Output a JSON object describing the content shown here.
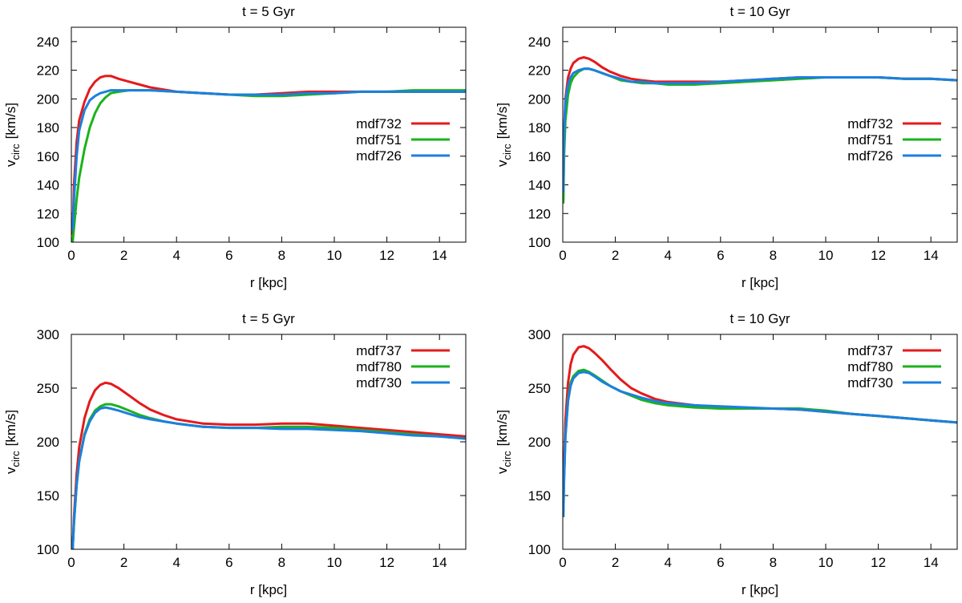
{
  "chart_data": [
    {
      "type": "line",
      "title": "t = 5 Gyr",
      "xlabel": "r [kpc]",
      "ylabel_main": "v",
      "ylabel_sub": "circ",
      "ylabel_unit": "[km/s]",
      "xlim": [
        0,
        15
      ],
      "ylim": [
        100,
        250
      ],
      "xticks": [
        0,
        2,
        4,
        6,
        8,
        10,
        12,
        14
      ],
      "yticks": [
        100,
        120,
        140,
        160,
        180,
        200,
        220,
        240
      ],
      "grid": false,
      "legend_position": "right-middle",
      "series": [
        {
          "name": "mdf732",
          "color": "#e41a1c",
          "x": [
            0.05,
            0.1,
            0.2,
            0.3,
            0.5,
            0.7,
            0.9,
            1.1,
            1.3,
            1.5,
            1.8,
            2.2,
            2.6,
            3,
            4,
            5,
            6,
            7,
            8,
            9,
            10,
            11,
            12,
            13,
            14,
            15
          ],
          "y": [
            105,
            140,
            170,
            185,
            198,
            207,
            212,
            215,
            216,
            216,
            214,
            212,
            210,
            208,
            205,
            204,
            203,
            203,
            204,
            205,
            205,
            205,
            205,
            205,
            205,
            205
          ]
        },
        {
          "name": "mdf751",
          "color": "#1ab31a",
          "x": [
            0.05,
            0.1,
            0.2,
            0.3,
            0.5,
            0.7,
            0.9,
            1.1,
            1.3,
            1.5,
            1.8,
            2.2,
            2.6,
            3,
            4,
            5,
            6,
            7,
            8,
            9,
            10,
            11,
            12,
            13,
            14,
            15
          ],
          "y": [
            100,
            110,
            130,
            145,
            165,
            180,
            190,
            197,
            201,
            204,
            205,
            206,
            206,
            206,
            205,
            204,
            203,
            202,
            202,
            203,
            204,
            205,
            205,
            206,
            206,
            206
          ]
        },
        {
          "name": "mdf726",
          "color": "#1c7fe0",
          "x": [
            0.05,
            0.1,
            0.2,
            0.3,
            0.5,
            0.7,
            0.9,
            1.1,
            1.3,
            1.5,
            1.8,
            2.2,
            2.6,
            3,
            4,
            5,
            6,
            7,
            8,
            9,
            10,
            11,
            12,
            13,
            14,
            15
          ],
          "y": [
            108,
            130,
            160,
            178,
            192,
            199,
            202,
            204,
            205,
            206,
            206,
            206,
            206,
            206,
            205,
            204,
            203,
            203,
            203,
            204,
            204,
            205,
            205,
            205,
            205,
            205
          ]
        }
      ]
    },
    {
      "type": "line",
      "title": "t = 10 Gyr",
      "xlabel": "r [kpc]",
      "ylabel_main": "v",
      "ylabel_sub": "circ",
      "ylabel_unit": "[km/s]",
      "xlim": [
        0,
        15
      ],
      "ylim": [
        100,
        250
      ],
      "xticks": [
        0,
        2,
        4,
        6,
        8,
        10,
        12,
        14
      ],
      "yticks": [
        100,
        120,
        140,
        160,
        180,
        200,
        220,
        240
      ],
      "grid": false,
      "legend_position": "right-middle",
      "series": [
        {
          "name": "mdf732",
          "color": "#e41a1c",
          "x": [
            0.02,
            0.05,
            0.1,
            0.2,
            0.3,
            0.4,
            0.6,
            0.8,
            1,
            1.2,
            1.5,
            1.8,
            2.2,
            2.6,
            3,
            3.5,
            4,
            5,
            6,
            7,
            8,
            9,
            10,
            11,
            12,
            13,
            14,
            15
          ],
          "y": [
            130,
            175,
            200,
            215,
            221,
            225,
            228,
            229,
            228,
            226,
            222,
            219,
            216,
            214,
            213,
            212,
            212,
            212,
            212,
            213,
            214,
            215,
            215,
            215,
            215,
            214,
            214,
            213
          ]
        },
        {
          "name": "mdf751",
          "color": "#1ab31a",
          "x": [
            0.02,
            0.05,
            0.1,
            0.2,
            0.3,
            0.4,
            0.6,
            0.8,
            1,
            1.2,
            1.5,
            1.8,
            2.2,
            2.6,
            3,
            3.5,
            4,
            5,
            6,
            7,
            8,
            9,
            10,
            11,
            12,
            13,
            14,
            15
          ],
          "y": [
            127,
            160,
            185,
            203,
            211,
            215,
            219,
            221,
            221,
            220,
            218,
            216,
            213,
            212,
            211,
            211,
            210,
            210,
            211,
            212,
            213,
            214,
            215,
            215,
            215,
            214,
            214,
            213
          ]
        },
        {
          "name": "mdf726",
          "color": "#1c7fe0",
          "x": [
            0.02,
            0.05,
            0.1,
            0.2,
            0.3,
            0.4,
            0.6,
            0.8,
            1,
            1.2,
            1.5,
            1.8,
            2.2,
            2.6,
            3,
            3.5,
            4,
            5,
            6,
            7,
            8,
            9,
            10,
            11,
            12,
            13,
            14,
            15
          ],
          "y": [
            135,
            175,
            198,
            210,
            215,
            218,
            220,
            221,
            221,
            220,
            218,
            216,
            214,
            212,
            212,
            211,
            211,
            211,
            212,
            213,
            214,
            215,
            215,
            215,
            215,
            214,
            214,
            213
          ]
        }
      ]
    },
    {
      "type": "line",
      "title": "t = 5 Gyr",
      "xlabel": "r [kpc]",
      "ylabel_main": "v",
      "ylabel_sub": "circ",
      "ylabel_unit": "[km/s]",
      "xlim": [
        0,
        15
      ],
      "ylim": [
        100,
        300
      ],
      "xticks": [
        0,
        2,
        4,
        6,
        8,
        10,
        12,
        14
      ],
      "yticks": [
        100,
        150,
        200,
        250,
        300
      ],
      "grid": false,
      "legend_position": "top-right",
      "series": [
        {
          "name": "mdf737",
          "color": "#e41a1c",
          "x": [
            0.05,
            0.1,
            0.2,
            0.3,
            0.5,
            0.7,
            0.9,
            1.1,
            1.3,
            1.5,
            1.8,
            2.2,
            2.6,
            3,
            3.5,
            4,
            5,
            6,
            7,
            8,
            9,
            10,
            11,
            12,
            13,
            14,
            15
          ],
          "y": [
            100,
            130,
            170,
            195,
            222,
            238,
            248,
            253,
            255,
            254,
            250,
            243,
            236,
            230,
            225,
            221,
            217,
            216,
            216,
            217,
            217,
            215,
            213,
            211,
            209,
            207,
            205
          ]
        },
        {
          "name": "mdf780",
          "color": "#1ab31a",
          "x": [
            0.05,
            0.1,
            0.2,
            0.3,
            0.5,
            0.7,
            0.9,
            1.1,
            1.3,
            1.5,
            1.8,
            2.2,
            2.6,
            3,
            3.5,
            4,
            5,
            6,
            7,
            8,
            9,
            10,
            11,
            12,
            13,
            14,
            15
          ],
          "y": [
            100,
            125,
            160,
            182,
            207,
            221,
            229,
            233,
            235,
            235,
            233,
            229,
            225,
            222,
            219,
            217,
            214,
            213,
            213,
            214,
            214,
            213,
            211,
            209,
            207,
            205,
            203
          ]
        },
        {
          "name": "mdf730",
          "color": "#1c7fe0",
          "x": [
            0.05,
            0.1,
            0.2,
            0.3,
            0.5,
            0.7,
            0.9,
            1.1,
            1.3,
            1.5,
            1.8,
            2.2,
            2.6,
            3,
            3.5,
            4,
            5,
            6,
            7,
            8,
            9,
            10,
            11,
            12,
            13,
            14,
            15
          ],
          "y": [
            100,
            125,
            160,
            182,
            206,
            219,
            227,
            231,
            232,
            231,
            229,
            226,
            223,
            221,
            219,
            217,
            214,
            213,
            213,
            212,
            212,
            211,
            210,
            208,
            206,
            205,
            203
          ]
        }
      ]
    },
    {
      "type": "line",
      "title": "t = 10 Gyr",
      "xlabel": "r [kpc]",
      "ylabel_main": "v",
      "ylabel_sub": "circ",
      "ylabel_unit": "[km/s]",
      "xlim": [
        0,
        15
      ],
      "ylim": [
        100,
        300
      ],
      "xticks": [
        0,
        2,
        4,
        6,
        8,
        10,
        12,
        14
      ],
      "yticks": [
        100,
        150,
        200,
        250,
        300
      ],
      "grid": false,
      "legend_position": "top-right",
      "series": [
        {
          "name": "mdf737",
          "color": "#e41a1c",
          "x": [
            0.02,
            0.05,
            0.1,
            0.2,
            0.3,
            0.4,
            0.6,
            0.8,
            1,
            1.2,
            1.5,
            1.8,
            2.2,
            2.6,
            3,
            3.5,
            4,
            5,
            6,
            7,
            8,
            9,
            10,
            11,
            12,
            13,
            14,
            15
          ],
          "y": [
            140,
            180,
            220,
            255,
            272,
            281,
            288,
            289,
            287,
            283,
            276,
            268,
            258,
            250,
            245,
            240,
            237,
            234,
            232,
            231,
            231,
            230,
            228,
            226,
            224,
            222,
            220,
            218
          ]
        },
        {
          "name": "mdf780",
          "color": "#1ab31a",
          "x": [
            0.02,
            0.05,
            0.1,
            0.2,
            0.3,
            0.4,
            0.6,
            0.8,
            1,
            1.2,
            1.5,
            1.8,
            2.2,
            2.6,
            3,
            3.5,
            4,
            5,
            6,
            7,
            8,
            9,
            10,
            11,
            12,
            13,
            14,
            15
          ],
          "y": [
            130,
            165,
            205,
            240,
            255,
            261,
            266,
            267,
            265,
            262,
            257,
            252,
            247,
            243,
            239,
            236,
            234,
            232,
            231,
            231,
            231,
            231,
            229,
            226,
            224,
            222,
            220,
            218
          ]
        },
        {
          "name": "mdf730",
          "color": "#1c7fe0",
          "x": [
            0.02,
            0.05,
            0.1,
            0.2,
            0.3,
            0.4,
            0.6,
            0.8,
            1,
            1.2,
            1.5,
            1.8,
            2.2,
            2.6,
            3,
            3.5,
            4,
            5,
            6,
            7,
            8,
            9,
            10,
            11,
            12,
            13,
            14,
            15
          ],
          "y": [
            130,
            165,
            205,
            238,
            252,
            259,
            264,
            265,
            264,
            261,
            256,
            252,
            247,
            244,
            241,
            238,
            236,
            234,
            233,
            232,
            231,
            230,
            228,
            226,
            224,
            222,
            220,
            218
          ]
        }
      ]
    }
  ]
}
